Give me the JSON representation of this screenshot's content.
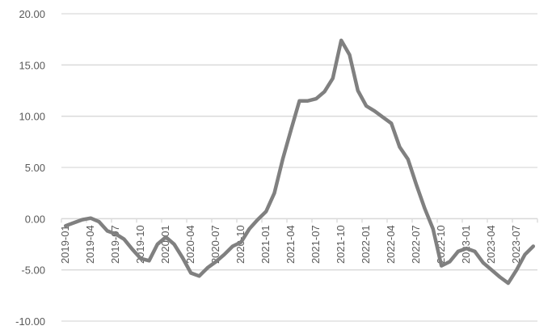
{
  "chart_data": {
    "type": "line",
    "title": "",
    "xlabel": "",
    "ylabel": "",
    "ylim": [
      -10,
      20
    ],
    "yticks": [
      "-10.00",
      "-5.00",
      "0.00",
      "5.00",
      "10.00",
      "15.00",
      "20.00"
    ],
    "grid": true,
    "legend": "none",
    "line_color": "#808080",
    "grid_color": "#d9d9d9",
    "x": [
      "2019-01",
      "2019-02",
      "2019-03",
      "2019-04",
      "2019-05",
      "2019-06",
      "2019-07",
      "2019-08",
      "2019-09",
      "2019-10",
      "2019-11",
      "2019-12",
      "2020-01",
      "2020-02",
      "2020-03",
      "2020-04",
      "2020-05",
      "2020-06",
      "2020-07",
      "2020-08",
      "2020-09",
      "2020-10",
      "2020-11",
      "2020-12",
      "2021-01",
      "2021-02",
      "2021-03",
      "2021-04",
      "2021-05",
      "2021-06",
      "2021-07",
      "2021-08",
      "2021-09",
      "2021-10",
      "2021-11",
      "2021-12",
      "2022-01",
      "2022-02",
      "2022-03",
      "2022-04",
      "2022-05",
      "2022-06",
      "2022-07",
      "2022-08",
      "2022-09",
      "2022-10",
      "2022-11",
      "2022-12",
      "2023-01",
      "2023-02",
      "2023-03",
      "2023-04",
      "2023-05",
      "2023-06",
      "2023-07",
      "2023-08",
      "2023-09"
    ],
    "xtick_labels": [
      "2019-01",
      "2019-04",
      "2019-07",
      "2019-10",
      "2020-01",
      "2020-04",
      "2020-07",
      "2020-10",
      "2021-01",
      "2021-04",
      "2021-07",
      "2021-10",
      "2022-01",
      "2022-04",
      "2022-07",
      "2022-10",
      "2023-01",
      "2023-04",
      "2023-07"
    ],
    "series": [
      {
        "values": [
          -0.7,
          -0.4,
          -0.1,
          0.05,
          -0.3,
          -1.2,
          -1.5,
          -2.0,
          -3.0,
          -3.9,
          -4.1,
          -2.5,
          -1.8,
          -2.5,
          -3.8,
          -5.3,
          -5.6,
          -4.8,
          -4.2,
          -3.5,
          -2.7,
          -2.3,
          -1.0,
          -0.1,
          0.7,
          2.5,
          5.8,
          8.7,
          11.5,
          11.5,
          11.7,
          12.4,
          13.7,
          17.4,
          16.0,
          12.5,
          11.0,
          10.5,
          9.9,
          9.3,
          7.0,
          5.8,
          3.3,
          1.0,
          -1.0,
          -4.6,
          -4.2,
          -3.2,
          -2.9,
          -3.2,
          -4.3,
          -5.0,
          -5.7,
          -6.3,
          -5.0,
          -3.5,
          -2.7
        ]
      }
    ]
  }
}
